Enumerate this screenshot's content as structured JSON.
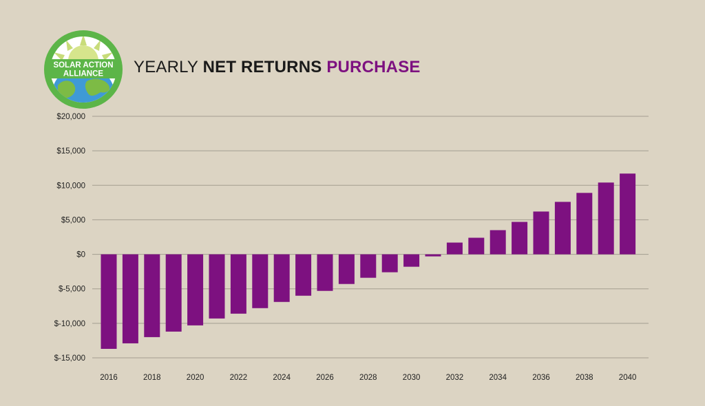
{
  "title": {
    "part1": "YEARLY ",
    "part2": "NET RETURNS",
    "part3": " PURCHASE"
  },
  "logo": {
    "line1": "SOLAR ACTION",
    "line2": "ALLIANCE"
  },
  "colors": {
    "background": "#dcd4c3",
    "bar": "#7d1180",
    "accent": "#7d1180",
    "grid": "#a39d90"
  },
  "chart_data": {
    "type": "bar",
    "title": "YEARLY NET RETURNS PURCHASE",
    "xlabel": "",
    "ylabel": "",
    "grid": true,
    "ylim": [
      -15000,
      20000
    ],
    "yticks": [
      20000,
      15000,
      10000,
      5000,
      0,
      -5000,
      -10000,
      -15000
    ],
    "ytick_labels": [
      "$20,000",
      "$15,000",
      "$10,000",
      "$5,000",
      "$0",
      "$-5,000",
      "$-10,000",
      "$-15,000"
    ],
    "xtick_labels": [
      "2016",
      "2018",
      "2020",
      "2022",
      "2024",
      "2026",
      "2028",
      "2030",
      "2032",
      "2034",
      "2036",
      "2038",
      "2040"
    ],
    "categories": [
      "2016",
      "2017",
      "2018",
      "2019",
      "2020",
      "2021",
      "2022",
      "2023",
      "2024",
      "2025",
      "2026",
      "2027",
      "2028",
      "2029",
      "2030",
      "2031",
      "2032",
      "2033",
      "2034",
      "2035",
      "2036",
      "2037",
      "2038",
      "2039",
      "2040"
    ],
    "values": [
      -13700,
      -12900,
      -12000,
      -11200,
      -10300,
      -9300,
      -8600,
      -7800,
      -6900,
      -6000,
      -5300,
      -4300,
      -3400,
      -2600,
      -1800,
      -300,
      1700,
      2400,
      3500,
      4700,
      6200,
      7600,
      8900,
      10400,
      11700
    ]
  }
}
